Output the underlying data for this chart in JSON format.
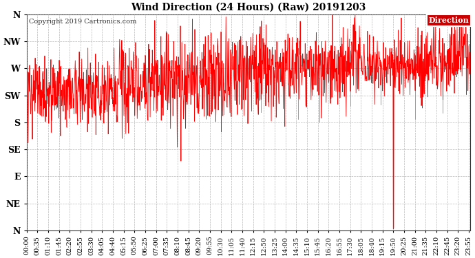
{
  "title": "Wind Direction (24 Hours) (Raw) 20191203",
  "copyright": "Copyright 2019 Cartronics.com",
  "legend_label": "Direction",
  "line_color": "#ff0000",
  "dark_line_color": "#555555",
  "bg_color": "#ffffff",
  "grid_color": "#999999",
  "yticks_values": [
    0,
    45,
    90,
    135,
    180,
    225,
    270,
    315,
    360
  ],
  "yticks_labels": [
    "N",
    "NE",
    "E",
    "SE",
    "S",
    "SW",
    "W",
    "NW",
    "N"
  ],
  "ylim": [
    0,
    360
  ],
  "n_points": 1440,
  "xtick_labels": [
    "00:00",
    "00:35",
    "01:10",
    "01:45",
    "02:20",
    "02:55",
    "03:30",
    "04:05",
    "04:40",
    "05:15",
    "05:50",
    "06:25",
    "07:00",
    "07:35",
    "08:10",
    "08:45",
    "09:20",
    "09:55",
    "10:30",
    "11:05",
    "11:40",
    "12:15",
    "12:50",
    "13:25",
    "14:00",
    "14:35",
    "15:10",
    "15:45",
    "16:20",
    "16:55",
    "17:30",
    "18:05",
    "18:40",
    "19:15",
    "19:50",
    "20:25",
    "21:00",
    "21:35",
    "22:10",
    "22:45",
    "23:20",
    "23:55"
  ],
  "legend_bbox_color": "#cc0000",
  "title_fontsize": 10,
  "tick_fontsize": 7,
  "copyright_fontsize": 7
}
